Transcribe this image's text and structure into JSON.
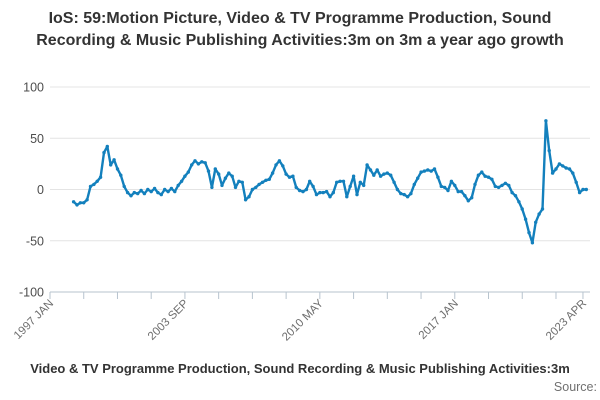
{
  "title": "IoS: 59:Motion Picture, Video & TV Programme Production, Sound Recording & Music Publishing Activities:3m on 3m a year ago growth",
  "footer": {
    "legend_text": "Video & TV Programme Production, Sound Recording & Music Publishing Activities:3m",
    "source_label": "Source:"
  },
  "colors": {
    "line": "#1380bd",
    "grid": "#e4e4e4",
    "axis": "#b7c3ce",
    "x_tick_label": "#6e6e6e",
    "y_tick_label": "#4d4d4d",
    "title_text": "#333333",
    "source_text": "#707070",
    "background": "#ffffff"
  },
  "chart_data": {
    "type": "line",
    "title": "IoS: 59:Motion Picture, Video & TV Programme Production, Sound Recording & Music Publishing Activities:3m on 3m a year ago growth",
    "x_axis": {
      "note": "month index 0 = 1997 JAN",
      "label_ticks": [
        {
          "month": 0,
          "label": "1997 JAN"
        },
        {
          "month": 80,
          "label": "2003 SEP"
        },
        {
          "month": 160,
          "label": "2010 MAY"
        },
        {
          "month": 240,
          "label": "2017 JAN"
        },
        {
          "month": 316,
          "label": "2023 APR"
        }
      ],
      "minor_tick_interval_months": 20,
      "last_tick_month": 316
    },
    "y_axis": {
      "tick_values": [
        100,
        50,
        0,
        -50,
        -100
      ],
      "ylim": [
        -100,
        100
      ],
      "gridlines": true
    },
    "series": [
      {
        "name": "IoS: 59:Motion Picture, Video & TV Programme Production, Sound Recording & Music Publishing Activities:3m on 3m a year ago growth",
        "color": "#1380bd",
        "marker": "circle",
        "start_month_index": 14,
        "start_date": "1998 MAR",
        "month_step": 2,
        "values": [
          -12,
          -15,
          -13,
          -13,
          -10,
          3,
          5,
          8,
          12,
          36,
          42,
          24,
          29,
          20,
          14,
          3,
          -3,
          -6,
          -3,
          -4,
          -1,
          -4,
          0,
          -2,
          1,
          -3,
          -5,
          0,
          -2,
          1,
          -2,
          4,
          8,
          13,
          17,
          24,
          28,
          25,
          27,
          26,
          18,
          2,
          20,
          15,
          4,
          11,
          16,
          13,
          2,
          8,
          7,
          -10,
          -7,
          0,
          2,
          5,
          7,
          9,
          10,
          16,
          24,
          28,
          23,
          15,
          12,
          13,
          2,
          -1,
          -2,
          0,
          8,
          3,
          -5,
          -3,
          -3,
          -2,
          -7,
          -3,
          7,
          8,
          8,
          -7,
          3,
          13,
          -5,
          7,
          4,
          24,
          19,
          14,
          19,
          13,
          15,
          16,
          14,
          7,
          0,
          -4,
          -5,
          -7,
          -4,
          5,
          11,
          17,
          18,
          19,
          18,
          20,
          12,
          3,
          2,
          -1,
          8,
          4,
          -2,
          -2,
          -6,
          -11,
          -8,
          5,
          14,
          17,
          13,
          12,
          10,
          3,
          2,
          4,
          6,
          4,
          -3,
          -6,
          -12,
          -19,
          -29,
          -42,
          -52,
          -32,
          -24,
          -19,
          67,
          38,
          16,
          20,
          25,
          23,
          21,
          20,
          16,
          7,
          -3,
          0,
          0
        ]
      }
    ]
  }
}
